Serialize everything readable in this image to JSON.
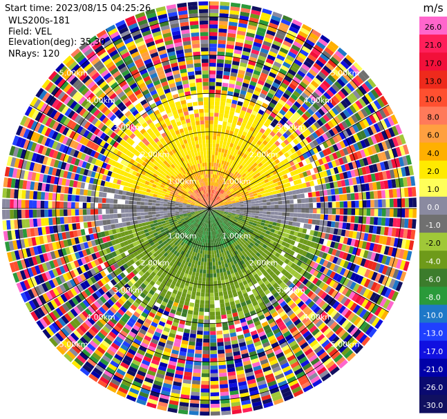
{
  "header": {
    "start_time": "Start time: 2023/08/15 04:25:26",
    "instrument": "WLS200s-181",
    "field": "Field: VEL",
    "elevation": "Elevation(deg): 35.30",
    "nrays": "NRays: 120"
  },
  "chart_data": {
    "type": "heatmap",
    "subtype": "radar-ppi",
    "range_rings": [
      {
        "value": 1.0,
        "label": "1.00km"
      },
      {
        "value": 2.0,
        "label": "2.00km"
      },
      {
        "value": 3.0,
        "label": "3.00km"
      },
      {
        "value": 4.0,
        "label": "4.00km"
      },
      {
        "value": 5.0,
        "label": "5.00km"
      }
    ],
    "max_range_km": 5.4,
    "n_rays": 120,
    "spoke_step_deg": 30,
    "pattern": {
      "north_sector": "positive velocity (2 to 8 m/s)",
      "south_sector": "negative velocity (-2 to -8 m/s)",
      "east_west": "near zero (-1 to 1 m/s)",
      "outer_ranges": "noise, all classes"
    }
  },
  "colorbar": {
    "unit": "m/s",
    "labels": [
      "26.0",
      "21.0",
      "17.0",
      "13.0",
      "10.0",
      "8.0",
      "6.0",
      "4.0",
      "2.0",
      "1.0",
      "0.0",
      "-1.0",
      "-2.0",
      "-4.0",
      "-6.0",
      "-8.0",
      "-10.0",
      "-13.0",
      "-17.0",
      "-21.0",
      "-26.0",
      "-30.0"
    ],
    "colors": [
      "#ff66cc",
      "#ff1f5a",
      "#f2103a",
      "#ee2a1c",
      "#ff5030",
      "#ff7a5a",
      "#ffa040",
      "#ffb000",
      "#ffea00",
      "#ffff5a",
      "#8a8aa0",
      "#707070",
      "#a0c838",
      "#6e9a1a",
      "#3c7c2c",
      "#2a9a3a",
      "#1e78c8",
      "#2040ff",
      "#1010e0",
      "#0000a8",
      "#0a0a70",
      "#101060"
    ]
  }
}
